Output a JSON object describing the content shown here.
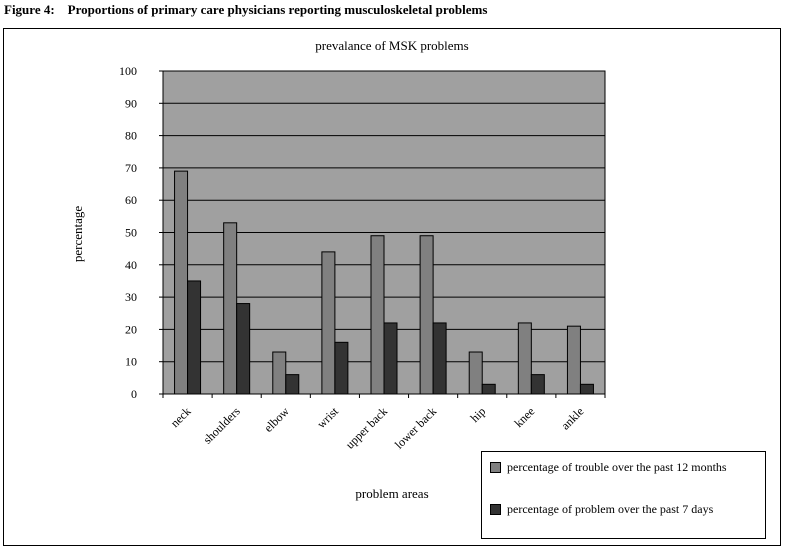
{
  "figure_title": "Figure 4:    Proportions of primary care physicians reporting musculoskeletal problems",
  "colors": {
    "plot_bg": "#a0a0a0",
    "series1": "#808080",
    "series2": "#333333"
  },
  "chart_data": {
    "type": "bar",
    "title": "prevalance of MSK problems",
    "xlabel": "problem areas",
    "ylabel": "percentage",
    "ylim": [
      0,
      100
    ],
    "yticks": [
      0,
      10,
      20,
      30,
      40,
      50,
      60,
      70,
      80,
      90,
      100
    ],
    "grid": true,
    "legend_position": "bottom-right",
    "categories": [
      "neck",
      "shoulders",
      "elbow",
      "wrist",
      "upper back",
      "lower back",
      "hip",
      "knee",
      "ankle"
    ],
    "series": [
      {
        "name": "percentage of trouble over the past 12 months",
        "color": "#808080",
        "values": [
          69,
          53,
          13,
          44,
          49,
          49,
          13,
          22,
          21
        ]
      },
      {
        "name": "percentage of problem over the past 7 days",
        "color": "#333333",
        "values": [
          35,
          28,
          6,
          16,
          22,
          22,
          3,
          6,
          3
        ]
      }
    ]
  }
}
